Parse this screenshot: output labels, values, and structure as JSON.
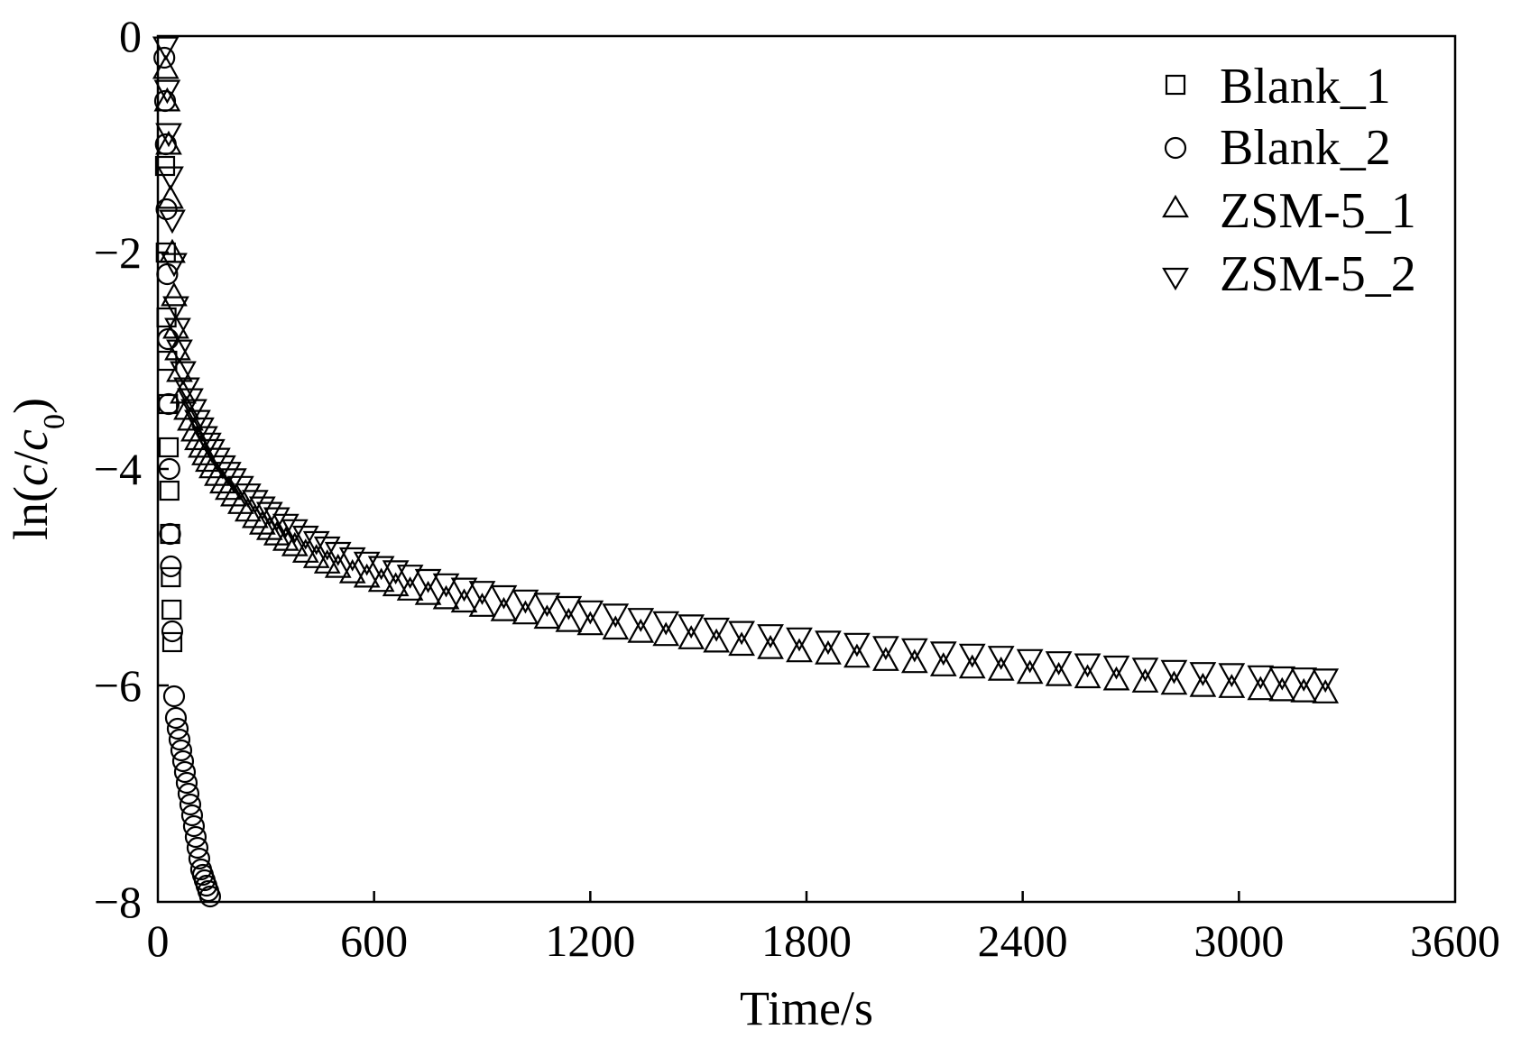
{
  "chart_data": {
    "type": "scatter",
    "xlabel": "Time/s",
    "ylabel": {
      "prefix": "ln(",
      "c1": "c",
      "slash": "/",
      "c2": "c",
      "sub": "0",
      "suffix": ")"
    },
    "xlim": [
      0,
      3600
    ],
    "ylim": [
      -8,
      0
    ],
    "xticks": [
      0,
      600,
      1200,
      1800,
      2400,
      3000,
      3600
    ],
    "yticks": [
      0,
      -2,
      -4,
      -6,
      -8
    ],
    "xtick_labels": [
      "0",
      "600",
      "1200",
      "1800",
      "2400",
      "3000",
      "3600"
    ],
    "ytick_labels": [
      "0",
      "−2",
      "−4",
      "−6",
      "−8"
    ],
    "grid": false,
    "legend_position": "top-right",
    "series": [
      {
        "name": "Blank_1",
        "marker": "square",
        "x": [
          20,
          22,
          24,
          26,
          28,
          30,
          32,
          34,
          36,
          38,
          40
        ],
        "y": [
          -1.2,
          -2.0,
          -2.6,
          -3.0,
          -3.4,
          -3.8,
          -4.2,
          -4.6,
          -5.0,
          -5.3,
          -5.6
        ]
      },
      {
        "name": "Blank_2",
        "marker": "circle",
        "x": [
          18,
          20,
          22,
          24,
          26,
          28,
          30,
          32,
          34,
          36,
          40,
          45,
          50,
          55,
          60,
          65,
          70,
          75,
          80,
          85,
          90,
          95,
          100,
          105,
          110,
          115,
          120,
          125,
          130,
          135,
          140,
          145
        ],
        "y": [
          -0.2,
          -0.6,
          -1.0,
          -1.6,
          -2.2,
          -2.8,
          -3.4,
          -4.0,
          -4.6,
          -4.9,
          -5.5,
          -6.1,
          -6.3,
          -6.4,
          -6.5,
          -6.6,
          -6.7,
          -6.8,
          -6.9,
          -7.0,
          -7.1,
          -7.2,
          -7.3,
          -7.4,
          -7.5,
          -7.6,
          -7.7,
          -7.75,
          -7.8,
          -7.85,
          -7.9,
          -7.95
        ]
      },
      {
        "name": "ZSM-5_1",
        "marker": "triangle-up",
        "x": [
          22,
          26,
          30,
          35,
          40,
          45,
          50,
          55,
          60,
          70,
          80,
          90,
          100,
          110,
          120,
          130,
          140,
          150,
          165,
          180,
          195,
          210,
          230,
          250,
          270,
          290,
          310,
          330,
          355,
          380,
          410,
          440,
          470,
          500,
          540,
          580,
          620,
          660,
          700,
          750,
          800,
          850,
          900,
          960,
          1020,
          1080,
          1140,
          1200,
          1270,
          1340,
          1410,
          1480,
          1550,
          1620,
          1700,
          1780,
          1860,
          1940,
          2020,
          2100,
          2180,
          2260,
          2340,
          2420,
          2500,
          2580,
          2660,
          2740,
          2820,
          2900,
          2980,
          3060,
          3120,
          3180,
          3240
        ],
        "y": [
          -0.3,
          -0.6,
          -1.0,
          -1.5,
          -2.0,
          -2.4,
          -2.7,
          -2.9,
          -3.1,
          -3.3,
          -3.45,
          -3.55,
          -3.65,
          -3.73,
          -3.8,
          -3.87,
          -3.93,
          -3.99,
          -4.06,
          -4.13,
          -4.19,
          -4.25,
          -4.32,
          -4.39,
          -4.45,
          -4.51,
          -4.56,
          -4.61,
          -4.66,
          -4.71,
          -4.77,
          -4.82,
          -4.87,
          -4.91,
          -4.96,
          -5.0,
          -5.04,
          -5.08,
          -5.12,
          -5.16,
          -5.2,
          -5.23,
          -5.27,
          -5.31,
          -5.34,
          -5.38,
          -5.41,
          -5.44,
          -5.48,
          -5.51,
          -5.54,
          -5.57,
          -5.6,
          -5.63,
          -5.66,
          -5.69,
          -5.71,
          -5.74,
          -5.77,
          -5.79,
          -5.82,
          -5.84,
          -5.86,
          -5.89,
          -5.91,
          -5.93,
          -5.95,
          -5.97,
          -5.99,
          -6.01,
          -6.02,
          -6.04,
          -6.05,
          -6.06,
          -6.07
        ]
      },
      {
        "name": "ZSM-5_2",
        "marker": "triangle-down",
        "x": [
          22,
          26,
          30,
          35,
          40,
          45,
          50,
          55,
          60,
          70,
          80,
          90,
          100,
          110,
          120,
          130,
          140,
          150,
          165,
          180,
          195,
          210,
          230,
          250,
          270,
          290,
          310,
          330,
          355,
          380,
          410,
          440,
          470,
          500,
          540,
          580,
          620,
          660,
          700,
          750,
          800,
          850,
          900,
          960,
          1020,
          1080,
          1140,
          1200,
          1270,
          1340,
          1410,
          1480,
          1550,
          1620,
          1700,
          1780,
          1860,
          1940,
          2020,
          2100,
          2180,
          2260,
          2340,
          2420,
          2500,
          2580,
          2660,
          2740,
          2820,
          2900,
          2980,
          3060,
          3120,
          3180,
          3240
        ],
        "y": [
          -0.1,
          -0.5,
          -0.9,
          -1.3,
          -1.7,
          -2.1,
          -2.5,
          -2.7,
          -2.9,
          -3.1,
          -3.25,
          -3.35,
          -3.45,
          -3.55,
          -3.62,
          -3.7,
          -3.76,
          -3.82,
          -3.9,
          -3.97,
          -4.03,
          -4.09,
          -4.16,
          -4.23,
          -4.29,
          -4.35,
          -4.4,
          -4.45,
          -4.51,
          -4.56,
          -4.62,
          -4.67,
          -4.72,
          -4.77,
          -4.82,
          -4.86,
          -4.9,
          -4.94,
          -4.98,
          -5.02,
          -5.06,
          -5.1,
          -5.13,
          -5.17,
          -5.21,
          -5.24,
          -5.27,
          -5.31,
          -5.34,
          -5.38,
          -5.41,
          -5.44,
          -5.47,
          -5.5,
          -5.53,
          -5.56,
          -5.59,
          -5.61,
          -5.64,
          -5.66,
          -5.69,
          -5.71,
          -5.73,
          -5.76,
          -5.78,
          -5.8,
          -5.82,
          -5.84,
          -5.86,
          -5.88,
          -5.89,
          -5.91,
          -5.92,
          -5.93,
          -5.94
        ]
      }
    ]
  }
}
